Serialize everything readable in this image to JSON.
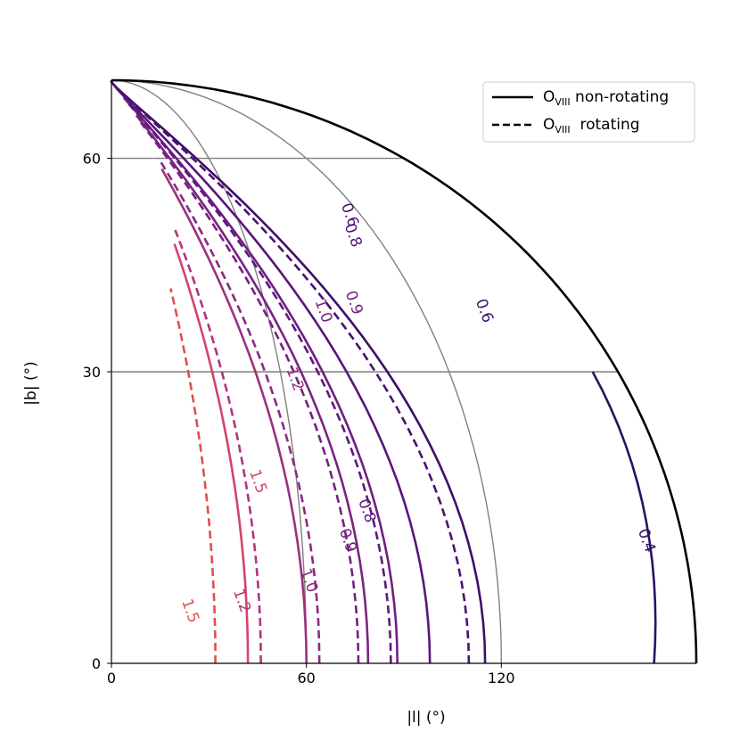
{
  "chart_data": {
    "type": "contour",
    "projection": "galactic-quarter-sky",
    "xlabel": "|l| (°)",
    "ylabel": "|b| (°)",
    "x_ticks": [
      "0",
      "60",
      "120"
    ],
    "y_ticks": [
      "0",
      "30",
      "60"
    ],
    "graticule": {
      "meridians_l": [
        60,
        120
      ],
      "parallels_b": [
        30,
        60
      ]
    },
    "legend": {
      "position": "top-right",
      "entries": [
        {
          "id": "nonrot",
          "style": "solid",
          "label_main": "O",
          "label_sub": "VIII",
          "label_rest": " non-rotating"
        },
        {
          "id": "rot",
          "style": "dashed",
          "label_main": "O",
          "label_sub": "VIII",
          "label_rest": "  rotating"
        }
      ]
    },
    "series": [
      {
        "style": "solid",
        "level": "0.4",
        "color": "#2c1160",
        "labels": [
          [
            0.4,
            167,
            12
          ]
        ]
      },
      {
        "style": "solid",
        "level": "0.6",
        "color": "#3e0f6b",
        "labels": [
          [
            0.6,
            142,
            37
          ]
        ]
      },
      {
        "style": "solid",
        "level": "0.8",
        "color": "#57157e",
        "labels": [
          [
            0.8,
            107,
            47
          ]
        ]
      },
      {
        "style": "solid",
        "level": "0.9",
        "color": "#6f1f81",
        "labels": [
          [
            0.9,
            93,
            38
          ]
        ]
      },
      {
        "style": "solid",
        "level": "1.0",
        "color": "#7b2382",
        "labels": [
          [
            1.0,
            80,
            37
          ]
        ]
      },
      {
        "style": "solid",
        "level": "1.2",
        "color": "#9e2f7f",
        "labels": [
          [
            1.2,
            63,
            29
          ]
        ]
      },
      {
        "style": "solid",
        "level": "1.5",
        "color": "#d3436e",
        "labels": [
          [
            1.5,
            46,
            18
          ]
        ]
      },
      {
        "style": "dashed",
        "level": "0.6",
        "color": "#4a1270",
        "labels": [
          [
            0.6,
            112,
            50
          ]
        ]
      },
      {
        "style": "dashed",
        "level": "0.8",
        "color": "#5f187f",
        "labels": [
          [
            0.8,
            80,
            15
          ]
        ]
      },
      {
        "style": "dashed",
        "level": "0.9",
        "color": "#752181",
        "labels": [
          [
            0.9,
            73,
            12
          ]
        ]
      },
      {
        "style": "dashed",
        "level": "1.0",
        "color": "#8a2a81",
        "labels": [
          [
            1.0,
            60,
            8
          ]
        ]
      },
      {
        "style": "dashed",
        "level": "1.2",
        "color": "#b0347d",
        "labels": [
          [
            1.2,
            39,
            6
          ]
        ]
      },
      {
        "style": "dashed",
        "level": "1.5",
        "color": "#e04f4f",
        "labels": [
          [
            1.5,
            23,
            5
          ]
        ]
      }
    ]
  }
}
